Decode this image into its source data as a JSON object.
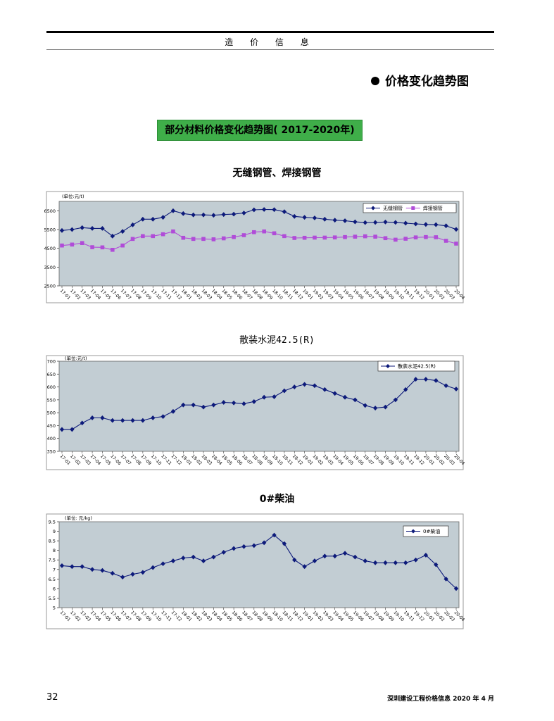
{
  "header": {
    "title": "造 价 信 息"
  },
  "section": {
    "heading": "价格变化趋势图"
  },
  "banner": {
    "text": "部分材料价格变化趋势图( 2017-2020年)"
  },
  "months": [
    "17-01",
    "17-02",
    "17-03",
    "17-04",
    "17-05",
    "17-06",
    "17-07",
    "17-08",
    "17-09",
    "17-10",
    "17-11",
    "17-12",
    "18-01",
    "18-02",
    "18-03",
    "18-04",
    "18-05",
    "18-06",
    "18-07",
    "18-08",
    "18-09",
    "18-10",
    "18-11",
    "18-12",
    "19-01",
    "19-02",
    "19-03",
    "19-04",
    "19-05",
    "19-06",
    "19-07",
    "19-08",
    "19-09",
    "19-10",
    "19-11",
    "19-12",
    "20-01",
    "20-02",
    "20-03",
    "20-04"
  ],
  "chart_data": [
    {
      "type": "line",
      "title": "无缝钢管、焊接钢管",
      "unit_label": "(单位:元/t)",
      "ylim": [
        2500,
        7000
      ],
      "yticks": [
        2500,
        3500,
        4500,
        5500,
        6500
      ],
      "legend_position": "top-right",
      "grid": false,
      "series": [
        {
          "name": "无缝钢管",
          "color": "#0d1a7a",
          "marker": "diamond",
          "values": [
            5450,
            5500,
            5600,
            5560,
            5560,
            5150,
            5400,
            5750,
            6050,
            6050,
            6150,
            6500,
            6350,
            6280,
            6280,
            6260,
            6300,
            6320,
            6380,
            6550,
            6570,
            6560,
            6450,
            6200,
            6150,
            6120,
            6050,
            6000,
            5970,
            5910,
            5870,
            5880,
            5900,
            5880,
            5840,
            5800,
            5770,
            5760,
            5700,
            5510
          ]
        },
        {
          "name": "焊接钢管",
          "color": "#b04cd8",
          "marker": "square",
          "values": [
            4650,
            4700,
            4780,
            4560,
            4550,
            4420,
            4650,
            5000,
            5150,
            5150,
            5250,
            5400,
            5060,
            5000,
            5000,
            4980,
            5030,
            5100,
            5200,
            5360,
            5400,
            5300,
            5150,
            5050,
            5060,
            5070,
            5070,
            5080,
            5100,
            5120,
            5140,
            5120,
            5040,
            4960,
            5010,
            5080,
            5100,
            5090,
            4900,
            4750
          ]
        }
      ]
    },
    {
      "type": "line",
      "title": "散装水泥42.5(R)",
      "unit_label": "(单位:元/t)",
      "ylim": [
        350,
        700
      ],
      "yticks": [
        350,
        400,
        450,
        500,
        550,
        600,
        650,
        700
      ],
      "legend_position": "top-right",
      "grid": false,
      "series": [
        {
          "name": "散装水泥42.5(R)",
          "color": "#0d1a7a",
          "marker": "diamond",
          "values": [
            435,
            435,
            460,
            480,
            480,
            470,
            470,
            470,
            470,
            480,
            485,
            505,
            530,
            530,
            522,
            530,
            540,
            538,
            535,
            543,
            560,
            562,
            585,
            600,
            610,
            605,
            590,
            575,
            560,
            550,
            528,
            518,
            522,
            550,
            590,
            630,
            630,
            625,
            605,
            592
          ]
        }
      ]
    },
    {
      "type": "line",
      "title": "0#柴油",
      "unit_label": "(单位: 元/kg)",
      "ylim": [
        5,
        9.5
      ],
      "yticks": [
        5,
        5.5,
        6,
        6.5,
        7,
        7.5,
        8,
        8.5,
        9,
        9.5
      ],
      "legend_position": "top-right",
      "grid": false,
      "series": [
        {
          "name": "0#柴油",
          "color": "#0d1a7a",
          "marker": "diamond",
          "values": [
            7.2,
            7.15,
            7.15,
            7.0,
            6.95,
            6.8,
            6.6,
            6.75,
            6.85,
            7.1,
            7.3,
            7.45,
            7.6,
            7.65,
            7.45,
            7.65,
            7.9,
            8.1,
            8.2,
            8.25,
            8.4,
            8.8,
            8.35,
            7.5,
            7.15,
            7.45,
            7.7,
            7.7,
            7.85,
            7.65,
            7.45,
            7.35,
            7.35,
            7.35,
            7.35,
            7.5,
            7.75,
            7.25,
            6.5,
            6.0
          ]
        }
      ]
    }
  ],
  "footer": {
    "page": "32",
    "publication": "深圳建设工程价格信息   2020 年 4 月"
  }
}
